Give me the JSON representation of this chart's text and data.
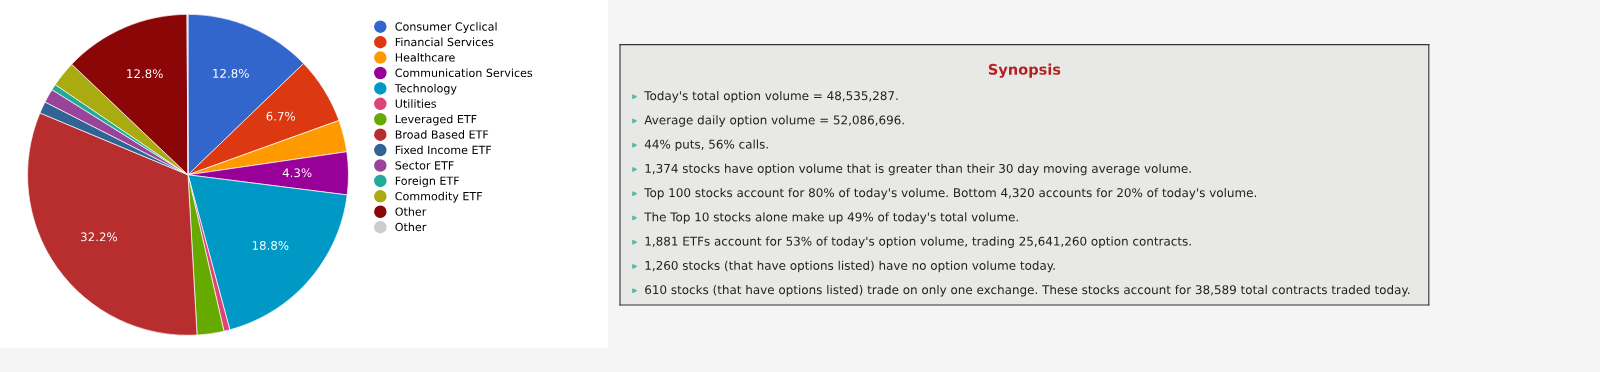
{
  "chart_data": [
    {
      "type": "pie",
      "categories": [
        "Consumer Cyclical",
        "Financial Services",
        "Healthcare",
        "Communication Services",
        "Technology",
        "Utilities",
        "Leveraged ETF",
        "Broad Based ETF",
        "Fixed Income ETF",
        "Sector ETF",
        "Foreign ETF",
        "Commodity ETF",
        "Other",
        "Other"
      ],
      "values": [
        12.8,
        6.7,
        3.2,
        4.3,
        18.8,
        0.6,
        2.7,
        32.2,
        1.2,
        1.4,
        0.6,
        2.6,
        12.8,
        0.1
      ],
      "colors": [
        "#3366cc",
        "#dc3912",
        "#ff9900",
        "#990099",
        "#0099c6",
        "#dd4477",
        "#66aa00",
        "#b82e2e",
        "#316395",
        "#994499",
        "#22aa99",
        "#aaaa11",
        "#8b0707",
        "#cccccc"
      ],
      "value_labels": [
        "12.8%",
        "6.7%",
        null,
        "4.3%",
        "18.8%",
        null,
        null,
        "32.2%",
        null,
        null,
        null,
        null,
        "12.8%",
        null
      ],
      "legend": "right"
    },
    {
      "type": "other",
      "title": "Synopsis",
      "annotations": [
        "Today's total option volume = 48,535,287.",
        "Average daily option volume = 52,086,696.",
        "44% puts, 56% calls.",
        "1,374 stocks have option volume that is greater than their 30 day moving average volume.",
        "Top 100 stocks account for 80% of today's volume. Bottom 4,320 accounts for 20% of today's volume.",
        "The Top 10 stocks alone make up 49% of today's total volume.",
        "1,881 ETFs account for 53% of today's option volume, trading 25,641,260 option contracts.",
        "1,260 stocks (that have options listed) have no option volume today.",
        "610 stocks (that have options listed) trade on only one exchange. These stocks account for 38,589 total contracts traded today."
      ]
    }
  ]
}
